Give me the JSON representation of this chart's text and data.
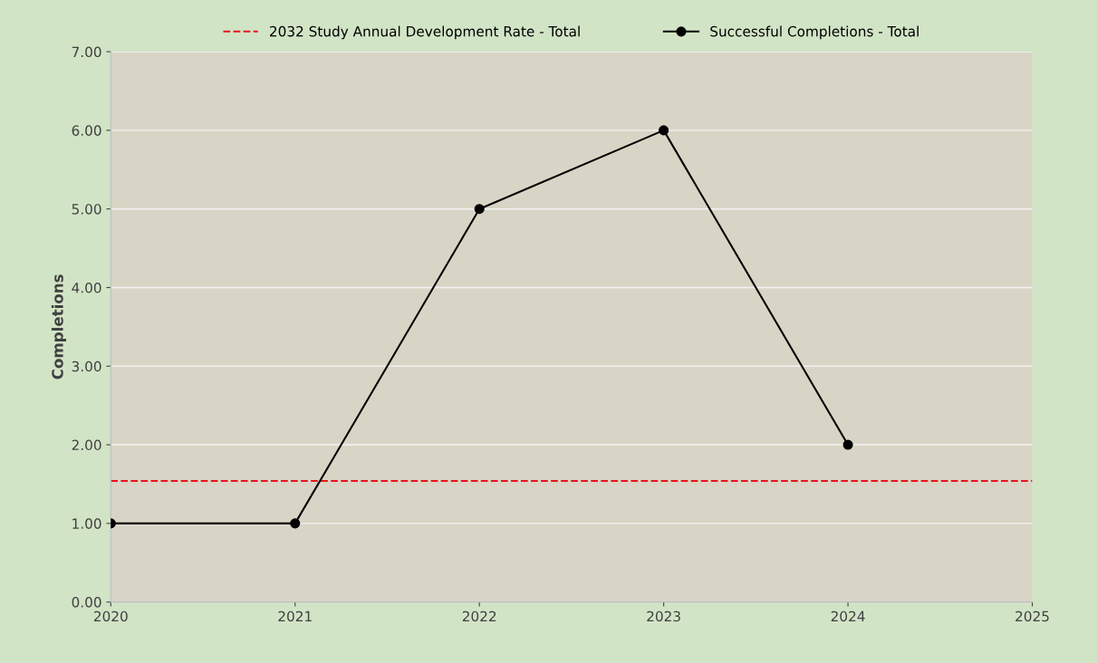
{
  "chart_data": {
    "type": "line",
    "ylabel": "Completions",
    "x": [
      2020,
      2021,
      2022,
      2023,
      2024
    ],
    "series": [
      {
        "name": "Successful Completions - Total",
        "color": "#000000",
        "values": [
          1,
          1,
          5,
          6,
          2
        ]
      }
    ],
    "ref_lines": [
      {
        "axis": "y",
        "value": 1.54,
        "label": "2032 Study Annual Development Rate - Total",
        "color": "#e8141c",
        "line_style": "dashed"
      }
    ],
    "xlim": [
      2020,
      2025
    ],
    "xticks": [
      2020,
      2021,
      2022,
      2023,
      2024,
      2025
    ],
    "ylim": [
      0,
      7
    ],
    "yticks": [
      {
        "value": 0,
        "label": "0.00"
      },
      {
        "value": 1,
        "label": "1.00"
      },
      {
        "value": 2,
        "label": "2.00"
      },
      {
        "value": 3,
        "label": "3.00"
      },
      {
        "value": 4,
        "label": "4.00"
      },
      {
        "value": 5,
        "label": "5.00"
      },
      {
        "value": 6,
        "label": "6.00"
      },
      {
        "value": 7,
        "label": "7.00"
      }
    ],
    "grid": "y",
    "legend": "top",
    "marker": "circle",
    "line_style": "solid"
  }
}
